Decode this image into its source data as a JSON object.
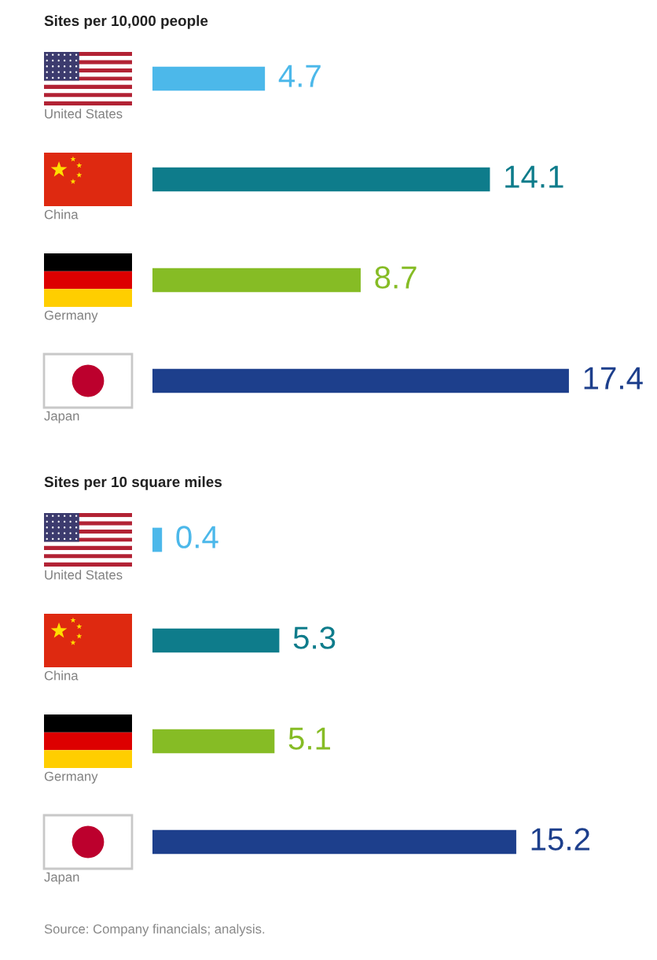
{
  "chart_data": [
    {
      "type": "bar",
      "orientation": "horizontal",
      "title": "Sites per 10,000 people",
      "categories": [
        "United States",
        "China",
        "Germany",
        "Japan"
      ],
      "values": [
        4.7,
        14.1,
        8.7,
        17.4
      ],
      "colors": [
        "#4cb8ea",
        "#0e7c8b",
        "#86bc25",
        "#1d3f8c"
      ],
      "data_labels": true,
      "tick_labels": "y"
    },
    {
      "type": "bar",
      "orientation": "horizontal",
      "title": "Sites per 10 square miles",
      "categories": [
        "United States",
        "China",
        "Germany",
        "Japan"
      ],
      "values": [
        0.4,
        5.3,
        5.1,
        15.2
      ],
      "colors": [
        "#4cb8ea",
        "#0e7c8b",
        "#86bc25",
        "#1d3f8c"
      ],
      "data_labels": true,
      "tick_labels": "y",
      "annotations": [
        "Source: Company financials; analysis."
      ]
    }
  ]
}
